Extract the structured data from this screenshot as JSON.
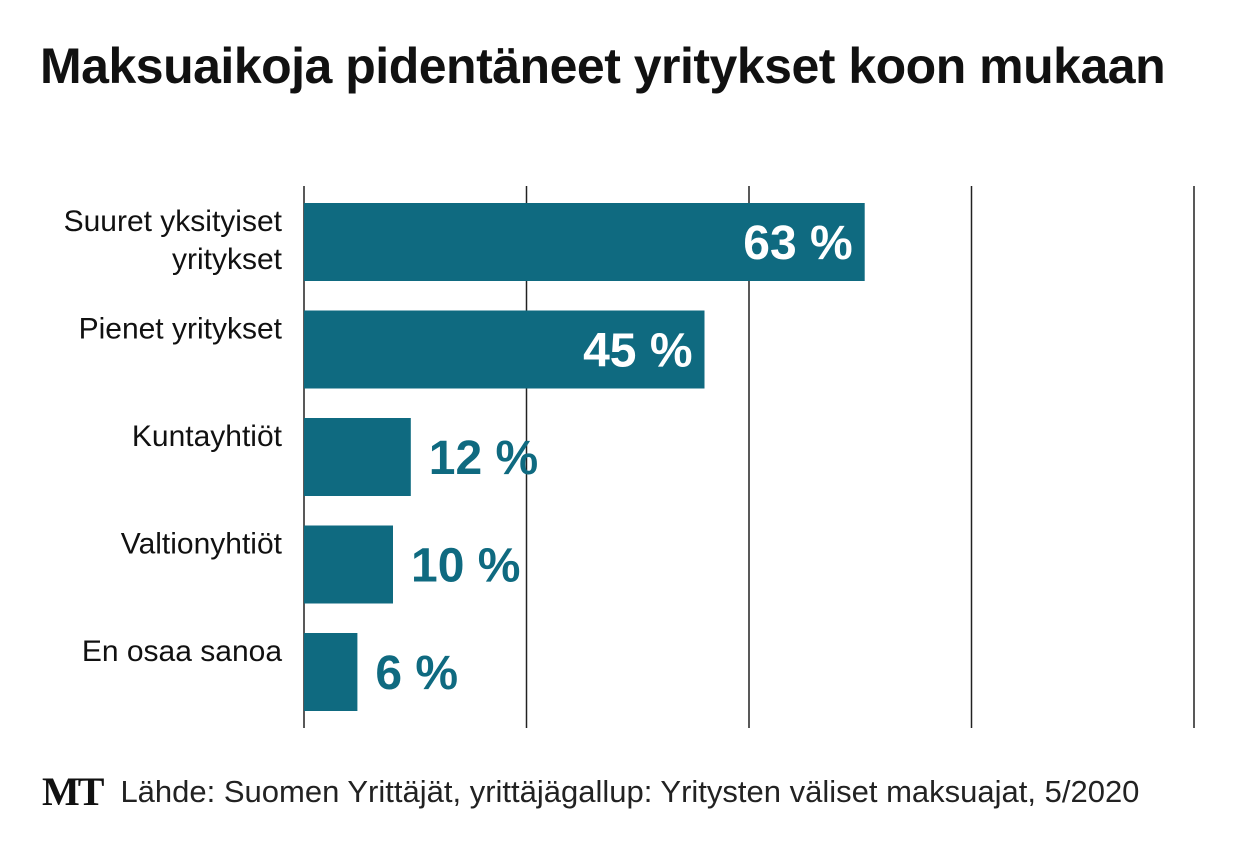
{
  "title": "Maksuaikoja pidentäneet yritykset koon mukaan",
  "logo": "MT",
  "source": "Lähde: Suomen Yrittäjät, yrittäjägallup: Yritysten väliset maksuajat, 5/2020",
  "chart_data": {
    "type": "bar",
    "orientation": "horizontal",
    "categories": [
      [
        "Suuret yksityiset",
        "yritykset"
      ],
      [
        "Pienet yritykset"
      ],
      [
        "Kuntayhtiöt"
      ],
      [
        "Valtionyhtiöt"
      ],
      [
        "En osaa sanoa"
      ]
    ],
    "values": [
      63,
      45,
      12,
      10,
      6
    ],
    "labels": [
      "63 %",
      "45 %",
      "12 %",
      "10 %",
      "6 %"
    ],
    "xlim": [
      0,
      100
    ],
    "gridlines": [
      0,
      25,
      50,
      75,
      100
    ],
    "grid": true,
    "bar_color": "#0f6a80",
    "label_inside_color": "#ffffff"
  }
}
